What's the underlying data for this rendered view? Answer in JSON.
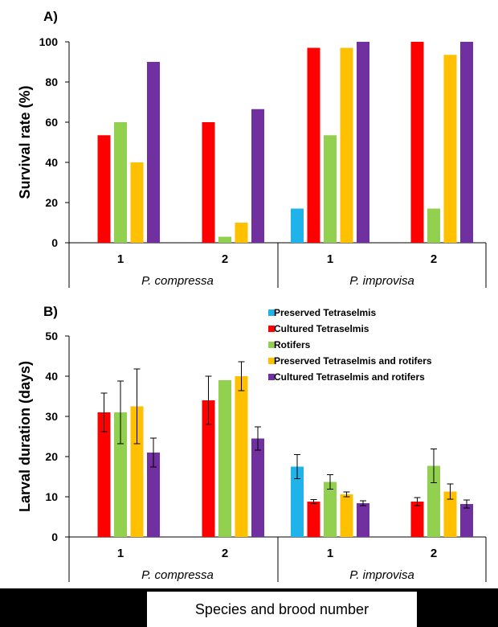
{
  "colors": {
    "Preserved Tetraselmis": "#1fb3ea",
    "Cultured Tetraselmis": "#ff0000",
    "Rotifers": "#92d050",
    "Preserved Tetraselmis and rotifers": "#ffc000",
    "Cultured Tetraselmis and rotifers": "#7030a0"
  },
  "footer": {
    "xlabel": "Species and brood number"
  },
  "chart_data": [
    {
      "type": "bar",
      "panel_label": "A)",
      "ylabel": "Survival rate (%)",
      "ylim": [
        0,
        100
      ],
      "yticks": [
        0,
        20,
        40,
        60,
        80,
        100
      ],
      "categories": [
        "1",
        "2",
        "1",
        "2"
      ],
      "groups": [
        "P. compressa",
        "P. improvisa"
      ],
      "series": [
        {
          "name": "Preserved Tetraselmis",
          "values": [
            null,
            null,
            17,
            null
          ]
        },
        {
          "name": "Cultured Tetraselmis",
          "values": [
            53.5,
            60,
            97,
            100
          ]
        },
        {
          "name": "Rotifers",
          "values": [
            60,
            3,
            53.5,
            17
          ]
        },
        {
          "name": "Preserved Tetraselmis and rotifers",
          "values": [
            40,
            10,
            97,
            93.5
          ]
        },
        {
          "name": "Cultured Tetraselmis and rotifers",
          "values": [
            90,
            66.5,
            100,
            100
          ]
        }
      ]
    },
    {
      "type": "bar",
      "panel_label": "B)",
      "ylabel": "Larval duration (days)",
      "ylim": [
        0,
        50
      ],
      "yticks": [
        0,
        10,
        20,
        30,
        40,
        50
      ],
      "categories": [
        "1",
        "2",
        "1",
        "2"
      ],
      "groups": [
        "P. compressa",
        "P. improvisa"
      ],
      "legend": [
        "Preserved Tetraselmis",
        "Cultured Tetraselmis",
        "Rotifers",
        "Preserved Tetraselmis and rotifers",
        "Cultured Tetraselmis and rotifers"
      ],
      "series": [
        {
          "name": "Preserved Tetraselmis",
          "values": [
            null,
            null,
            17.5,
            null
          ],
          "errors": [
            null,
            null,
            3,
            null
          ]
        },
        {
          "name": "Cultured Tetraselmis",
          "values": [
            31,
            34,
            8.8,
            8.8
          ],
          "errors": [
            4.8,
            6,
            0.5,
            1
          ]
        },
        {
          "name": "Rotifers",
          "values": [
            31,
            39,
            13.7,
            17.7
          ],
          "errors": [
            7.8,
            0,
            1.8,
            4.2
          ]
        },
        {
          "name": "Preserved Tetraselmis and rotifers",
          "values": [
            32.5,
            40,
            10.6,
            11.3
          ],
          "errors": [
            9.3,
            3.6,
            0.6,
            1.9
          ]
        },
        {
          "name": "Cultured Tetraselmis and rotifers",
          "values": [
            21,
            24.5,
            8.4,
            8.2
          ],
          "errors": [
            3.6,
            2.9,
            0.6,
            1
          ]
        }
      ]
    }
  ]
}
